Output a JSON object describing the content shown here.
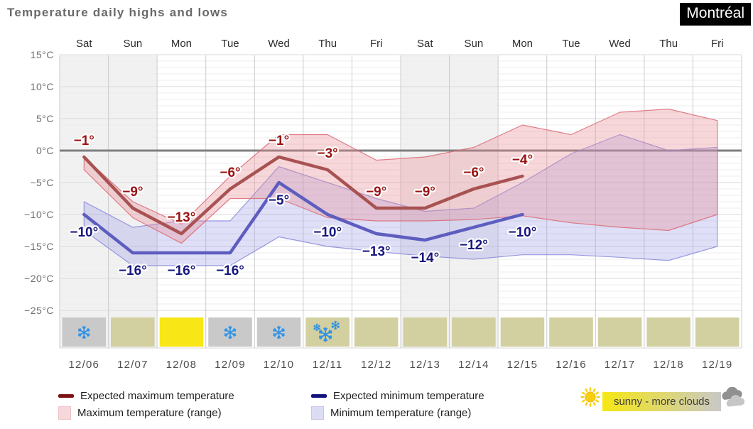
{
  "title": "Temperature daily highs and lows",
  "city": "Montréal",
  "legend": {
    "expected_max_label": "Expected maximum temperature",
    "max_range_label": "Maximum temperature (range)",
    "expected_min_label": "Expected minimum temperature",
    "min_range_label": "Minimum temperature (range)"
  },
  "summary": {
    "label": "sunny - more clouds",
    "bar_gradient_start": "#f6e713",
    "bar_gradient_end": "#c8c8c8",
    "sun_color": "#f7cf12",
    "sun_ray_color": "#f0b400",
    "cloud_back_color": "#909090",
    "cloud_front_color": "#c6c6c6"
  },
  "colors": {
    "expected_max_line": "#a85252",
    "expected_max_label": "#9b1212",
    "legend_max_line": "#7c1212",
    "max_range_fill": "rgba(231,140,150,0.35)",
    "max_range_edge": "rgba(219,105,115,0.85)",
    "legend_max_box_fill": "#f6d8dc",
    "legend_max_box_edge": "#eec3c8",
    "expected_min_line": "#5d5dc0",
    "expected_min_label": "#17177e",
    "legend_min_line": "#12127c",
    "min_range_fill": "rgba(150,150,228,0.30)",
    "min_range_edge": "rgba(130,130,218,0.80)",
    "legend_min_box_fill": "#dcdcf4",
    "legend_min_box_edge": "#c6c6ee",
    "zero_line": "#7f7f7f",
    "weekend_shade": "#f1f1f1",
    "grid_minor": "#ededed",
    "grid_major": "#d9d9d9",
    "grid_vertical": "#cccccc",
    "axis_text": "#6f6f6f",
    "day_text": "#2b2b2b",
    "date_text": "#4d4d4d",
    "snowflake": "#2f93e6"
  },
  "chart_data": {
    "type": "line",
    "title": "Temperature daily highs and lows",
    "x_top_labels": [
      "Sat",
      "Sun",
      "Mon",
      "Tue",
      "Wed",
      "Thu",
      "Fri",
      "Sat",
      "Sun",
      "Mon",
      "Tue",
      "Wed",
      "Thu",
      "Fri"
    ],
    "x_bottom_labels": [
      "12/06",
      "12/07",
      "12/08",
      "12/09",
      "12/10",
      "12/11",
      "12/12",
      "12/13",
      "12/14",
      "12/15",
      "12/16",
      "12/17",
      "12/18",
      "12/19"
    ],
    "y_unit": "°C",
    "ylim": [
      -25,
      15
    ],
    "y_tick_step": 5,
    "grid": true,
    "weekend_columns": [
      0,
      1,
      7,
      8
    ],
    "series": [
      {
        "name": "Expected maximum temperature",
        "kind": "line",
        "values": [
          -1,
          -9,
          -13,
          -6,
          -1,
          -3,
          -9,
          -9,
          -6,
          -4
        ]
      },
      {
        "name": "Expected minimum temperature",
        "kind": "line",
        "values": [
          -10,
          -16,
          -16,
          -16,
          -5,
          -10,
          -13,
          -14,
          -12,
          -10
        ]
      },
      {
        "name": "Maximum temperature (range)",
        "kind": "band",
        "upper": [
          -1,
          -8,
          -11.5,
          -4,
          2.5,
          2.5,
          -1.5,
          -1,
          0.5,
          4,
          2.5,
          6,
          6.5,
          4.7
        ],
        "lower": [
          -3,
          -10.5,
          -14.5,
          -7.5,
          -7.5,
          -10.5,
          -11,
          -11,
          -10.8,
          -10.2,
          -11.3,
          -12,
          -12.5,
          -10
        ]
      },
      {
        "name": "Minimum temperature (range)",
        "kind": "band",
        "upper": [
          -8,
          -12,
          -11,
          -11,
          -2.5,
          -5,
          -7.5,
          -9.5,
          -9,
          -5,
          -0.5,
          2.5,
          0,
          0.5
        ],
        "lower": [
          -12.5,
          -18,
          -18,
          -18,
          -13.5,
          -15,
          -15.8,
          -16.5,
          -17,
          -16.3,
          -16.3,
          -16.7,
          -17.2,
          -15
        ]
      }
    ],
    "weather_icons": [
      {
        "condition": "snow",
        "snowflakes": 1
      },
      {
        "condition": "partly-sunny",
        "snowflakes": 0
      },
      {
        "condition": "sunny",
        "snowflakes": 0
      },
      {
        "condition": "snow",
        "snowflakes": 1
      },
      {
        "condition": "snow",
        "snowflakes": 1
      },
      {
        "condition": "snow-and-sun",
        "snowflakes": 3
      },
      {
        "condition": "partly-sunny",
        "snowflakes": 0
      },
      {
        "condition": "partly-sunny",
        "snowflakes": 0
      },
      {
        "condition": "partly-sunny",
        "snowflakes": 0
      },
      {
        "condition": "partly-sunny",
        "snowflakes": 0
      },
      {
        "condition": "partly-sunny",
        "snowflakes": 0
      },
      {
        "condition": "partly-sunny",
        "snowflakes": 0
      },
      {
        "condition": "partly-sunny",
        "snowflakes": 0
      },
      {
        "condition": "partly-sunny",
        "snowflakes": 0
      }
    ],
    "icon_colors": {
      "snow": "#c9c9c9",
      "partly-sunny": "#d2cfa0",
      "sunny": "#f8e616",
      "snow-and-sun": "#d2cfa0"
    }
  }
}
